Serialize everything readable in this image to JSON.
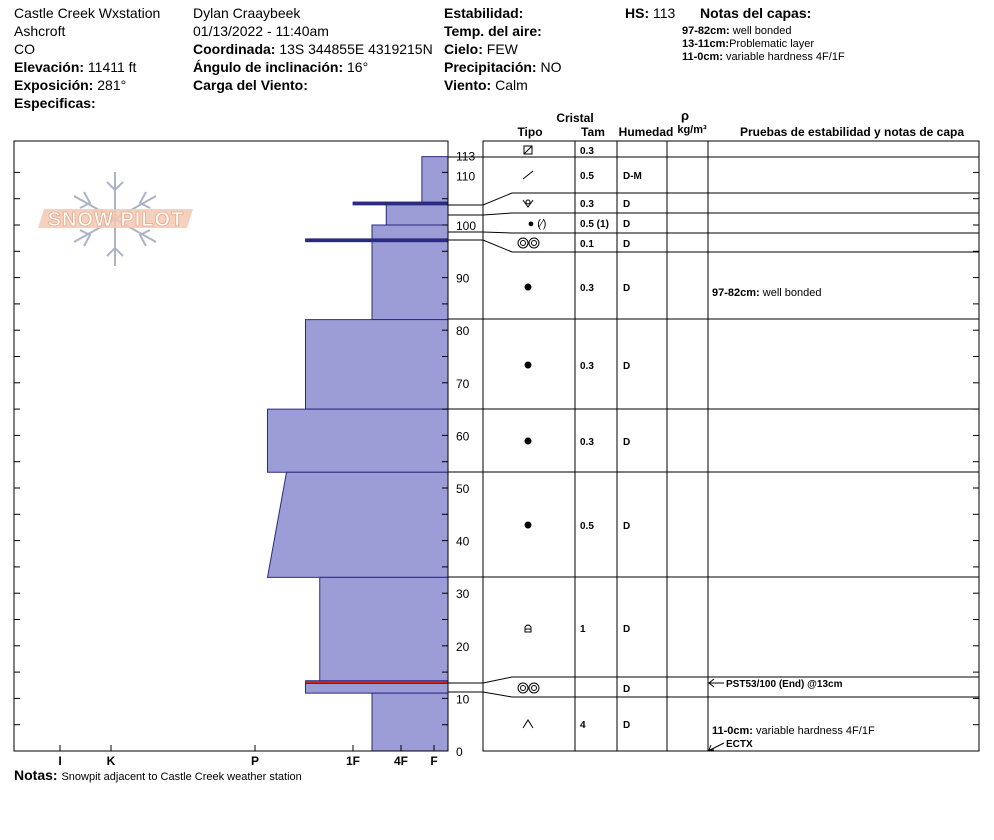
{
  "header": {
    "station": "Castle Creek Wxstation",
    "area": "Ashcroft",
    "state": "CO",
    "elevation_label": "Elevación:",
    "elevation_value": "11411 ft",
    "aspect_label": "Exposición:",
    "aspect_value": "281°",
    "specifics_label": "Especificas:",
    "observer": "Dylan Craaybeek",
    "datetime": "01/13/2022 - 11:40am",
    "coord_label": "Coordinada:",
    "coord_value": "13S 344855E 4319215N",
    "slope_label": "Ángulo de inclinación:",
    "slope_value": "16°",
    "wind_load_label": "Carga del Viento:",
    "stability_label": "Estabilidad:",
    "air_temp_label": "Temp. del aire:",
    "sky_label": "Cielo:",
    "sky_value": "FEW",
    "precip_label": "Precipitación:",
    "precip_value": "NO",
    "wind_label": "Viento:",
    "wind_value": "Calm",
    "hs_label": "HS:",
    "hs_value": "113"
  },
  "layer_notes": {
    "title": "Notas del capas:",
    "items": [
      {
        "range": "97-82cm:",
        "text": "well bonded"
      },
      {
        "range": "13-11cm:",
        "text": "Problematic layer"
      },
      {
        "range": "11-0cm:",
        "text": "variable hardness 4F/1F"
      }
    ]
  },
  "logo": {
    "text": "SNOW PILOT"
  },
  "table_headers": {
    "crystal": "Cristal",
    "type": "Tipo",
    "size": "Tam",
    "moisture": "Humedad",
    "density_symbol": "ρ",
    "density_unit": "kg/m³",
    "tests": "Pruebas de estabilidad y notas de capa"
  },
  "hand_hardness_labels": [
    "I",
    "K",
    "P",
    "1F",
    "4F",
    "F"
  ],
  "depth_ticks": [
    "0",
    "10",
    "20",
    "30",
    "40",
    "50",
    "60",
    "70",
    "80",
    "90",
    "100",
    "110",
    "113"
  ],
  "layer_rows": [
    {
      "top": 113,
      "bottom": 110,
      "grain_icon": "decomposing-fragments-icon",
      "size": "0.3",
      "moisture": ""
    },
    {
      "top": 110,
      "bottom": 104,
      "grain_icon": "precipitation-particles-icon",
      "size": "0.5",
      "moisture": "D-M"
    },
    {
      "top": 104,
      "bottom": 100,
      "grain_icon": "surface-hoar-icon",
      "size": "0.3",
      "moisture": "D"
    },
    {
      "top": 100,
      "bottom": 97,
      "grain_icon": "rounded-grains-icon",
      "grain_text": "● (⁄)",
      "size": "0.5 (1)",
      "moisture": "D"
    },
    {
      "top": 97,
      "bottom": 82,
      "grain_icon": "melt-forms-icon",
      "size": "0.1",
      "moisture": "D"
    },
    {
      "top": 82,
      "bottom": 65,
      "grain_icon": "rounded-grains-icon",
      "size": "0.3",
      "moisture": "D"
    },
    {
      "top": 65,
      "bottom": 53,
      "grain_icon": "rounded-grains-icon",
      "size": "0.3",
      "moisture": "D"
    },
    {
      "top": 53,
      "bottom": 33,
      "grain_icon": "rounded-grains-icon",
      "size": "0.3",
      "moisture": "D"
    },
    {
      "top": 33,
      "bottom": 13,
      "grain_icon": "rounded-grains-icon",
      "size": "0.5",
      "moisture": "D"
    },
    {
      "top": 13,
      "bottom": 11,
      "grain_icon": "faceted-crystals-icon",
      "size": "1",
      "moisture": "D"
    },
    {
      "top": 11,
      "bottom": 0,
      "grain_icon": "melt-forms-icon",
      "size": "",
      "moisture": "D"
    }
  ],
  "depth_hoar_row": {
    "grain_icon": "depth-hoar-icon",
    "size": "4",
    "moisture": "D"
  },
  "test_notes": {
    "note_97_82": {
      "range": "97-82cm:",
      "text": "well bonded"
    },
    "pst": "PST53/100 (End) @13cm",
    "note_11_0": {
      "range": "11-0cm:",
      "text": "variable hardness 4F/1F"
    },
    "ectx": "ECTX"
  },
  "footer": {
    "label": "Notas:",
    "text": "Snowpit adjacent to Castle Creek weather station"
  },
  "colors": {
    "profile_fill": "#9c9cd6",
    "weak_layer": "#cc2222"
  },
  "chart_data": {
    "type": "area",
    "title": "",
    "xlabel": "",
    "ylabel": "",
    "y_unit": "cm",
    "ylim": [
      0,
      113
    ],
    "hardness_scale": [
      "F",
      "4F",
      "1F",
      "P",
      "K",
      "I"
    ],
    "hardness_index": {
      "F": 1,
      "4F": 2,
      "1F": 3,
      "P": 4,
      "K": 5,
      "I": 6
    },
    "series": [
      {
        "layers": [
          {
            "top": 113,
            "bottom": 104,
            "hardness_top": 0.55,
            "hardness_bottom": 0.55
          },
          {
            "top": 104,
            "bottom": 100,
            "hardness_top": 1.3,
            "hardness_bottom": 1.3
          },
          {
            "top": 100,
            "bottom": 97,
            "hardness_top": 1.6,
            "hardness_bottom": 1.6
          },
          {
            "top": 97,
            "bottom": 82,
            "hardness_top": 1.6,
            "hardness_bottom": 1.6
          },
          {
            "top": 82,
            "bottom": 65,
            "hardness_top": 3,
            "hardness_bottom": 3
          },
          {
            "top": 65,
            "bottom": 53,
            "hardness_top": 3.8,
            "hardness_bottom": 3.8
          },
          {
            "top": 53,
            "bottom": 33,
            "hardness_top": 3.4,
            "hardness_bottom": 3.8
          },
          {
            "top": 33,
            "bottom": 13,
            "hardness_top": 2.7,
            "hardness_bottom": 2.7
          },
          {
            "top": 13,
            "bottom": 11,
            "hardness_top": 3,
            "hardness_bottom": 3
          },
          {
            "top": 11,
            "bottom": 0,
            "hardness_top": 1.6,
            "hardness_bottom": 1.6
          }
        ]
      }
    ],
    "thin_layers": [
      {
        "depth": 104,
        "hardness": 2
      },
      {
        "depth": 97,
        "hardness": 3
      },
      {
        "depth": 13,
        "hardness": 3
      }
    ]
  }
}
